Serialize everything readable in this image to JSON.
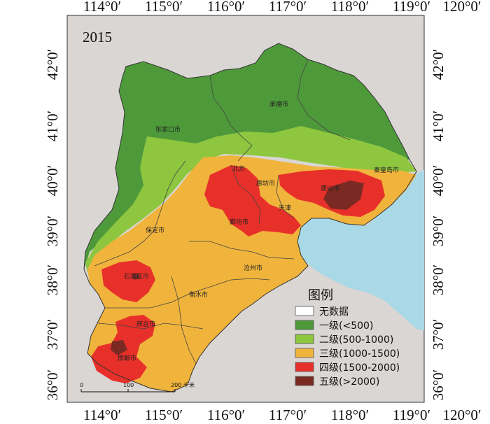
{
  "map": {
    "year_label": "2015",
    "top_ticks": [
      "114°0′",
      "115°0′",
      "116°0′",
      "117°0′",
      "118°0′",
      "119°0′",
      "120°0′"
    ],
    "bottom_ticks": [
      "114°0′",
      "115°0′",
      "116°0′",
      "117°0′",
      "118°0′",
      "119°0′",
      "120°0′"
    ],
    "left_ticks": [
      "42°0′",
      "41°0′",
      "40°0′",
      "39°0′",
      "38°0′",
      "37°0′",
      "36°0′"
    ],
    "right_ticks": [
      "42°0′",
      "41°0′",
      "40°0′",
      "39°0′",
      "38°0′",
      "37°0′",
      "36°0′"
    ],
    "cities": {
      "chengde": "承德市",
      "zhangjiakou": "张家口市",
      "beijing": "北京",
      "langfang": "廊坊市",
      "tangshan": "唐山市",
      "qinhuangdao": "秦皇岛市",
      "tianjin": "天津",
      "baoding": "保定市",
      "langfang2": "廊坊市",
      "cangzhou": "沧州市",
      "shijiazhuang": "石家庄市",
      "hengshui": "衡水市",
      "xingtai": "邢台市",
      "handan": "邯郸市"
    },
    "legend": {
      "title": "图例",
      "items": [
        {
          "label": "无数据",
          "color": "#ffffff"
        },
        {
          "label": "一级(<500)",
          "color": "#4e9a3a"
        },
        {
          "label": "二级(500-1000)",
          "color": "#8ec63f"
        },
        {
          "label": "三级(1000-1500)",
          "color": "#f0b43c"
        },
        {
          "label": "四级(1500-2000)",
          "color": "#e8302a"
        },
        {
          "label": "五级(>2000)",
          "color": "#7a2a22"
        }
      ]
    },
    "scale": {
      "ticks": [
        "0",
        "100",
        "200"
      ],
      "unit": "千米"
    },
    "colors": {
      "background": "#d9d6d4",
      "sea": "#a9d8e6"
    }
  }
}
